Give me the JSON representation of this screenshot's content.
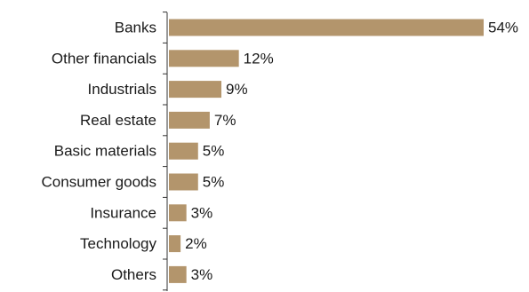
{
  "chart_data": {
    "type": "bar",
    "orientation": "horizontal",
    "title": "",
    "xlabel": "",
    "ylabel": "",
    "categories": [
      "Banks",
      "Other financials",
      "Industrials",
      "Real estate",
      "Basic materials",
      "Consumer goods",
      "Insurance",
      "Technology",
      "Others"
    ],
    "values": [
      54,
      12,
      9,
      7,
      5,
      5,
      3,
      2,
      3
    ],
    "value_labels": [
      "54%",
      "12%",
      "9%",
      "7%",
      "5%",
      "5%",
      "3%",
      "2%",
      "3%"
    ],
    "unit": "%",
    "xlim": [
      0,
      54
    ],
    "grid": false,
    "legend": "none",
    "bar_color": "#b3956c",
    "axis_color": "#333333"
  }
}
